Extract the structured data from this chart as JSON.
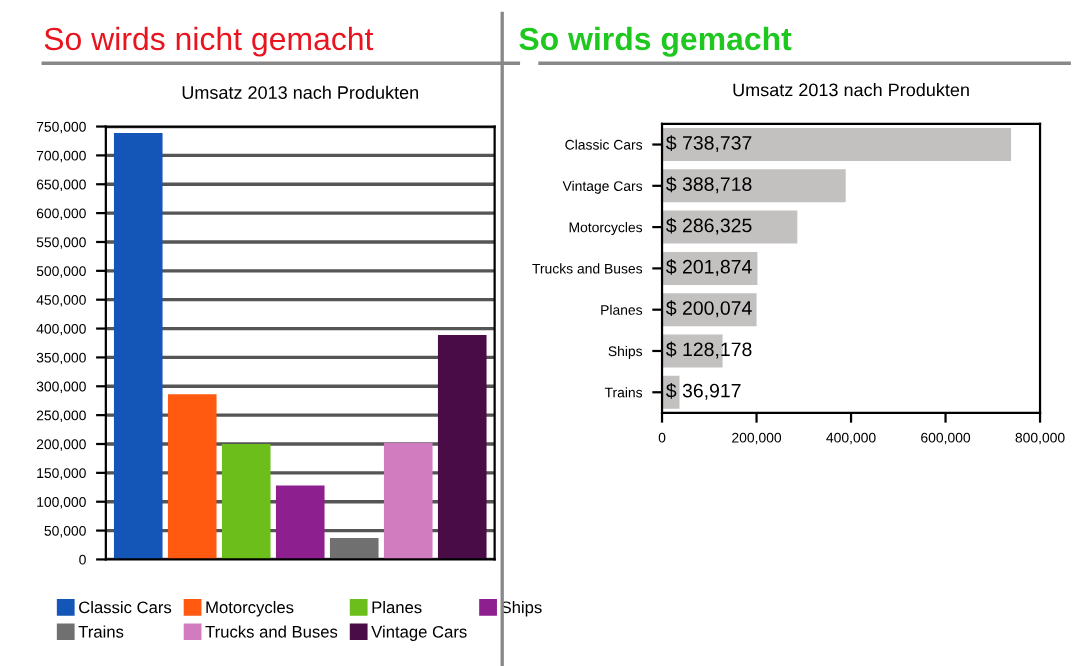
{
  "chart_data": [
    {
      "type": "bar",
      "title": "So wirds nicht gemacht",
      "subtitle": "Umsatz 2013 nach Produkten",
      "categories": [
        null,
        null,
        null,
        null,
        null,
        null,
        null
      ],
      "series": [
        {
          "name": "Classic Cars",
          "color": "#1456b8",
          "values": [
            739000,
            null,
            null,
            null,
            null,
            null,
            null
          ]
        },
        {
          "name": "Motorcycles",
          "color": "#ff5a10",
          "values": [
            null,
            286000,
            null,
            null,
            null,
            null,
            null
          ]
        },
        {
          "name": "Planes",
          "color": "#6cbf1a",
          "values": [
            null,
            null,
            200000,
            null,
            null,
            null,
            null
          ]
        },
        {
          "name": "Ships",
          "color": "#8e1f8e",
          "values": [
            null,
            null,
            null,
            128000,
            null,
            null,
            null
          ]
        },
        {
          "name": "Trains",
          "color": "#707070",
          "values": [
            null,
            null,
            null,
            null,
            37000,
            null,
            null
          ]
        },
        {
          "name": "Trucks and Buses",
          "color": "#d27cc0",
          "values": [
            null,
            null,
            null,
            null,
            null,
            202000,
            null
          ]
        },
        {
          "name": "Vintage Cars",
          "color": "#4a0c46",
          "values": [
            null,
            null,
            null,
            null,
            null,
            null,
            389000
          ]
        }
      ],
      "ylim": [
        0,
        750000
      ],
      "yticks": [
        0,
        {
          "value": 50000,
          "label": "50,000"
        },
        {
          "value": 100000,
          "label": "100,000"
        },
        {
          "value": 150000,
          "label": "150,000"
        },
        {
          "value": 200000,
          "label": "200,000"
        },
        {
          "value": 250000,
          "label": "250,000"
        },
        {
          "value": 300000,
          "label": "300,000"
        },
        {
          "value": 350000,
          "label": "350,000"
        },
        {
          "value": 400000,
          "label": "400,000"
        },
        {
          "value": 450000,
          "label": "450,000"
        },
        {
          "value": 500000,
          "label": "500,000"
        },
        {
          "value": 550000,
          "label": "550,000"
        },
        {
          "value": 600000,
          "label": "600,000"
        },
        {
          "value": 650000,
          "label": "650,000"
        },
        {
          "value": 700000,
          "label": "700,000"
        },
        {
          "value": 750000,
          "label": "750,000"
        }
      ],
      "grid": "y",
      "legend": "bottom",
      "tick_labels": "y"
    },
    {
      "type": "bar",
      "orientation": "horizontal",
      "title": "So wirds gemacht",
      "subtitle": "Umsatz 2013 nach Produkten",
      "categories": [
        "Classic Cars",
        "Vintage Cars",
        "Motorcycles",
        "Trucks and Buses",
        "Planes",
        "Ships",
        "Trains"
      ],
      "values": [
        738737,
        388718,
        286325,
        201874,
        200074,
        128178,
        36917
      ],
      "value_labels": [
        "$ 738,737",
        "$ 388,718",
        "$ 286,325",
        "$ 201,874",
        "$ 200,074",
        "$ 128,178",
        "$ 36,917"
      ],
      "color": "#c3c0c0",
      "xlim": [
        0,
        800000
      ],
      "xticks": [
        0,
        {
          "value": 200000,
          "label": "200,000"
        },
        {
          "value": 400000,
          "label": "400,000"
        },
        {
          "value": 600000,
          "label": "600,000"
        },
        {
          "value": 800000,
          "label": "800,000"
        }
      ]
    }
  ]
}
